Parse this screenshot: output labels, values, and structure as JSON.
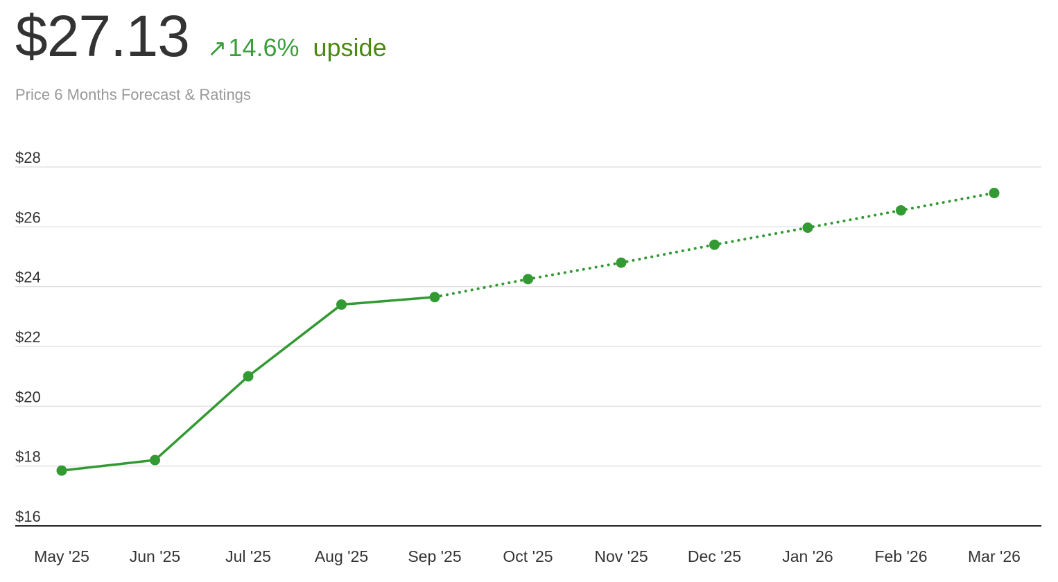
{
  "header": {
    "price": "$27.13",
    "arrow": "↗",
    "change_pct": "14.6%",
    "upside_label": "upside",
    "subtitle": "Price 6 Months Forecast & Ratings"
  },
  "colors": {
    "price": "#333333",
    "pct": "#3a9f3a",
    "upside": "#4a8a10",
    "line": "#339933",
    "grid": "#e2e2e2",
    "axis": "#222222",
    "label": "#333333"
  },
  "chart_data": {
    "type": "line",
    "title": "",
    "xlabel": "",
    "ylabel": "",
    "ylim": [
      16,
      28
    ],
    "y_ticks": [
      16,
      18,
      20,
      22,
      24,
      26,
      28
    ],
    "y_tick_labels": [
      "$16",
      "$18",
      "$20",
      "$22",
      "$24",
      "$26",
      "$28"
    ],
    "grid": true,
    "categories": [
      "May '25",
      "Jun '25",
      "Jul '25",
      "Aug '25",
      "Sep '25",
      "Oct '25",
      "Nov '25",
      "Dec '25",
      "Jan '26",
      "Feb '26",
      "Mar '26"
    ],
    "series": [
      {
        "style": "solid",
        "points": [
          {
            "x": "May '25",
            "y": 17.85
          },
          {
            "x": "Jun '25",
            "y": 18.2
          },
          {
            "x": "Jul '25",
            "y": 21.0
          },
          {
            "x": "Aug '25",
            "y": 23.4
          },
          {
            "x": "Sep '25",
            "y": 23.65
          }
        ]
      },
      {
        "style": "dotted",
        "points": [
          {
            "x": "Sep '25",
            "y": 23.65
          },
          {
            "x": "Oct '25",
            "y": 24.25
          },
          {
            "x": "Nov '25",
            "y": 24.8
          },
          {
            "x": "Dec '25",
            "y": 25.4
          },
          {
            "x": "Jan '26",
            "y": 25.97
          },
          {
            "x": "Feb '26",
            "y": 26.55
          },
          {
            "x": "Mar '26",
            "y": 27.13
          }
        ]
      }
    ]
  }
}
